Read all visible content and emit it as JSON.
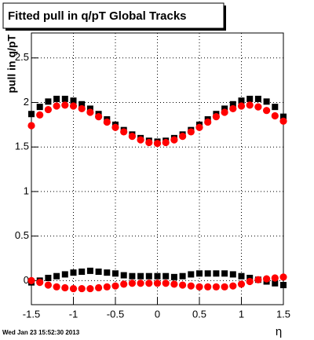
{
  "chart_data": {
    "type": "scatter",
    "title": "Fitted pull in q/pT  Global Tracks",
    "x_label": "η",
    "y_label": "pull in q/pT",
    "footer": "Wed Jan 23 15:52:30 2013",
    "x": [
      -1.5,
      -1.4,
      -1.3,
      -1.2,
      -1.1,
      -1.0,
      -0.9,
      -0.8,
      -0.7,
      -0.6,
      -0.5,
      -0.4,
      -0.3,
      -0.2,
      -0.1,
      0,
      0.1,
      0.2,
      0.3,
      0.4,
      0.5,
      0.6,
      0.7,
      0.8,
      0.9,
      1.0,
      1.1,
      1.2,
      1.3,
      1.4,
      1.5
    ],
    "series": [
      {
        "color": "#000000",
        "marker": "square",
        "values": [
          1.87,
          1.95,
          2.01,
          2.04,
          2.04,
          2.02,
          1.98,
          1.93,
          1.87,
          1.81,
          1.75,
          1.69,
          1.64,
          1.6,
          1.57,
          1.56,
          1.57,
          1.6,
          1.64,
          1.69,
          1.75,
          1.81,
          1.87,
          1.93,
          1.98,
          2.02,
          2.04,
          2.04,
          2.01,
          1.95,
          1.84
        ]
      },
      {
        "color": "#ff0000",
        "marker": "circle",
        "values": [
          1.74,
          1.86,
          1.92,
          1.96,
          1.97,
          1.96,
          1.93,
          1.89,
          1.84,
          1.78,
          1.72,
          1.67,
          1.62,
          1.58,
          1.55,
          1.54,
          1.55,
          1.58,
          1.62,
          1.67,
          1.72,
          1.78,
          1.84,
          1.89,
          1.93,
          1.96,
          1.97,
          1.95,
          1.91,
          1.85,
          1.79
        ]
      },
      {
        "color": "#000000",
        "marker": "square",
        "values": [
          -0.02,
          0.0,
          0.03,
          0.05,
          0.07,
          0.09,
          0.1,
          0.11,
          0.1,
          0.09,
          0.08,
          0.06,
          0.05,
          0.05,
          0.05,
          0.05,
          0.05,
          0.04,
          0.05,
          0.07,
          0.08,
          0.08,
          0.08,
          0.08,
          0.07,
          0.05,
          0.03,
          0.01,
          -0.01,
          -0.03,
          -0.05
        ]
      },
      {
        "color": "#ff0000",
        "marker": "circle",
        "values": [
          0.0,
          -0.02,
          -0.05,
          -0.07,
          -0.08,
          -0.09,
          -0.09,
          -0.09,
          -0.08,
          -0.07,
          -0.06,
          -0.04,
          -0.03,
          -0.03,
          -0.03,
          -0.03,
          -0.03,
          -0.04,
          -0.05,
          -0.06,
          -0.07,
          -0.07,
          -0.07,
          -0.07,
          -0.06,
          -0.04,
          -0.01,
          0.01,
          0.02,
          0.03,
          0.04
        ]
      }
    ],
    "xlim": [
      -1.5,
      1.5
    ],
    "xticks": [
      -1.5,
      -1,
      -0.5,
      0,
      0.5,
      1,
      1.5
    ],
    "ylim": [
      -0.27,
      2.78
    ],
    "yticks": [
      0,
      0.5,
      1,
      1.5,
      2,
      2.5
    ],
    "grid": true
  }
}
